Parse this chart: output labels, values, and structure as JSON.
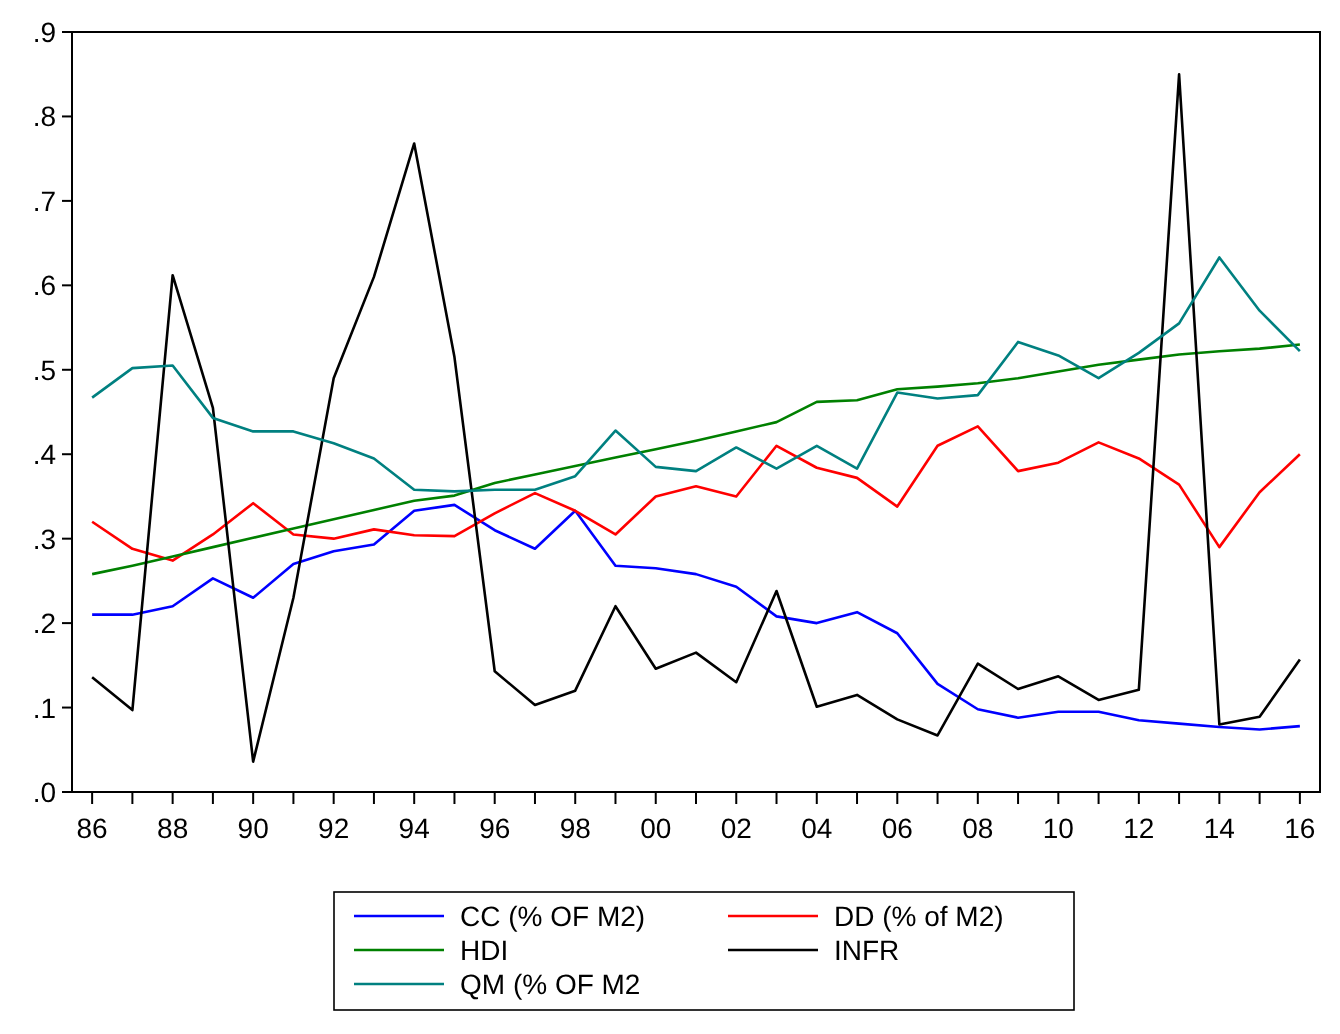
{
  "chart_data": {
    "type": "line",
    "x": [
      1986,
      1987,
      1988,
      1989,
      1990,
      1991,
      1992,
      1993,
      1994,
      1995,
      1996,
      1997,
      1998,
      1999,
      2000,
      2001,
      2002,
      2003,
      2004,
      2005,
      2006,
      2007,
      2008,
      2009,
      2010,
      2011,
      2012,
      2013,
      2014,
      2015,
      2016
    ],
    "xlim": [
      1985.5,
      2016.5
    ],
    "xticks": [
      {
        "value": 1986,
        "label": "86"
      },
      {
        "value": 1987,
        "label": null
      },
      {
        "value": 1988,
        "label": "88"
      },
      {
        "value": 1989,
        "label": null
      },
      {
        "value": 1990,
        "label": "90"
      },
      {
        "value": 1991,
        "label": null
      },
      {
        "value": 1992,
        "label": "92"
      },
      {
        "value": 1993,
        "label": null
      },
      {
        "value": 1994,
        "label": "94"
      },
      {
        "value": 1995,
        "label": null
      },
      {
        "value": 1996,
        "label": "96"
      },
      {
        "value": 1997,
        "label": null
      },
      {
        "value": 1998,
        "label": "98"
      },
      {
        "value": 1999,
        "label": null
      },
      {
        "value": 2000,
        "label": "00"
      },
      {
        "value": 2001,
        "label": null
      },
      {
        "value": 2002,
        "label": "02"
      },
      {
        "value": 2003,
        "label": null
      },
      {
        "value": 2004,
        "label": "04"
      },
      {
        "value": 2005,
        "label": null
      },
      {
        "value": 2006,
        "label": "06"
      },
      {
        "value": 2007,
        "label": null
      },
      {
        "value": 2008,
        "label": "08"
      },
      {
        "value": 2009,
        "label": null
      },
      {
        "value": 2010,
        "label": "10"
      },
      {
        "value": 2011,
        "label": null
      },
      {
        "value": 2012,
        "label": "12"
      },
      {
        "value": 2013,
        "label": null
      },
      {
        "value": 2014,
        "label": "14"
      },
      {
        "value": 2015,
        "label": null
      },
      {
        "value": 2016,
        "label": "16"
      }
    ],
    "ylim": [
      0,
      0.9
    ],
    "yticks": [
      {
        "value": 0,
        "label": ".0"
      },
      {
        "value": 0.1,
        "label": ".1"
      },
      {
        "value": 0.2,
        "label": ".2"
      },
      {
        "value": 0.3,
        "label": ".3"
      },
      {
        "value": 0.4,
        "label": ".4"
      },
      {
        "value": 0.5,
        "label": ".5"
      },
      {
        "value": 0.6,
        "label": ".6"
      },
      {
        "value": 0.7,
        "label": ".7"
      },
      {
        "value": 0.8,
        "label": ".8"
      },
      {
        "value": 0.9,
        "label": ".9"
      }
    ],
    "grid": false,
    "legend": "bottom",
    "line_style": "solid",
    "marker": "none",
    "series": [
      {
        "name": "CC (% OF M2)",
        "color": "#0000ff",
        "values": [
          0.21,
          0.21,
          0.22,
          0.253,
          0.23,
          0.27,
          0.285,
          0.293,
          0.333,
          0.34,
          0.31,
          0.288,
          0.333,
          0.268,
          0.265,
          0.258,
          0.243,
          0.208,
          0.2,
          0.213,
          0.188,
          0.128,
          0.098,
          0.088,
          0.095,
          0.095,
          0.085,
          0.081,
          0.077,
          0.074,
          0.078
        ]
      },
      {
        "name": "DD (% of M2)",
        "color": "#ff0000",
        "values": [
          0.32,
          0.288,
          0.274,
          0.305,
          0.342,
          0.305,
          0.3,
          0.311,
          0.304,
          0.303,
          0.33,
          0.354,
          0.333,
          0.305,
          0.35,
          0.362,
          0.35,
          0.41,
          0.384,
          0.372,
          0.338,
          0.41,
          0.433,
          0.38,
          0.39,
          0.414,
          0.395,
          0.364,
          0.29,
          0.355,
          0.4
        ]
      },
      {
        "name": "HDI",
        "color": "#008000",
        "values": [
          0.258,
          0.268,
          0.279,
          0.29,
          0.301,
          0.312,
          0.323,
          0.334,
          0.345,
          0.351,
          0.366,
          0.376,
          0.386,
          0.396,
          0.406,
          0.416,
          0.427,
          0.438,
          0.462,
          0.464,
          0.477,
          0.48,
          0.484,
          0.49,
          0.498,
          0.506,
          0.512,
          0.518,
          0.522,
          0.525,
          0.53
        ]
      },
      {
        "name": "INFR",
        "color": "#000000",
        "values": [
          0.136,
          0.097,
          0.612,
          0.455,
          0.036,
          0.23,
          0.49,
          0.61,
          0.768,
          0.515,
          0.143,
          0.103,
          0.12,
          0.22,
          0.146,
          0.165,
          0.13,
          0.238,
          0.101,
          0.115,
          0.086,
          0.067,
          0.152,
          0.122,
          0.137,
          0.109,
          0.121,
          0.85,
          0.08,
          0.089,
          0.157
        ]
      },
      {
        "name": "QM (% OF M2",
        "color": "#008080",
        "values": [
          0.467,
          0.502,
          0.505,
          0.443,
          0.427,
          0.427,
          0.413,
          0.395,
          0.358,
          0.356,
          0.358,
          0.358,
          0.374,
          0.428,
          0.385,
          0.38,
          0.408,
          0.383,
          0.41,
          0.383,
          0.473,
          0.466,
          0.47,
          0.533,
          0.517,
          0.49,
          0.52,
          0.555,
          0.633,
          0.57,
          0.522
        ]
      }
    ]
  }
}
